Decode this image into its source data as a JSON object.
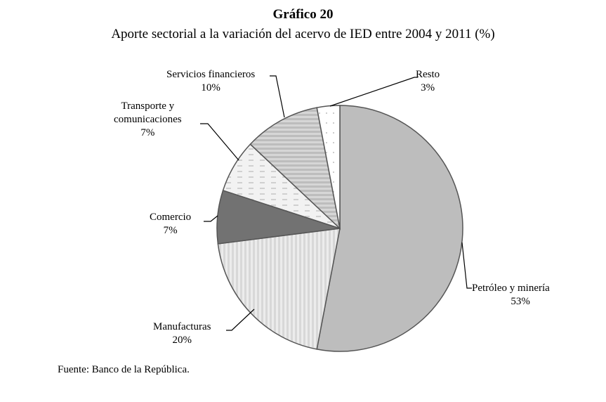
{
  "chart_data": {
    "type": "pie",
    "title": "Gráfico 20",
    "subtitle": "Aporte sectorial a la variación del acervo de IED entre 2004 y 2011 (%)",
    "start_angle": "12 o'clock, clockwise",
    "slices": [
      {
        "name": "Petróleo y minería",
        "value": 53,
        "label": "53%",
        "color": "#bdbdbd",
        "pattern": "solid"
      },
      {
        "name": "Manufacturas",
        "value": 20,
        "label": "20%",
        "color": "#e6e6e6",
        "pattern": "vertical-stripes"
      },
      {
        "name": "Comercio",
        "value": 7,
        "label": "7%",
        "color": "#727272",
        "pattern": "solid"
      },
      {
        "name": "Transporte y comunicaciones",
        "value": 7,
        "label": "7%",
        "color": "#f2f2f2",
        "pattern": "dashes"
      },
      {
        "name": "Servicios financieros",
        "value": 10,
        "label": "10%",
        "color": "#cfcfcf",
        "pattern": "horizontal-stripes"
      },
      {
        "name": "Resto",
        "value": 3,
        "label": "3%",
        "color": "#ffffff",
        "pattern": "dots"
      }
    ],
    "labels_display": [
      "Petróleo y minería",
      "Manufacturas",
      "Comercio",
      "Transporte y\ncomunicaciones",
      "Servicios financieros",
      "Resto"
    ]
  },
  "source": "Fuente: Banco de la República."
}
